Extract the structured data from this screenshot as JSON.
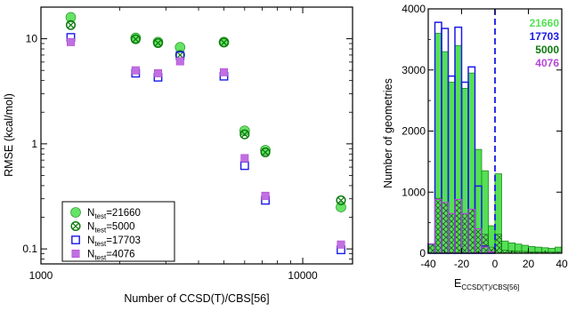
{
  "colors": {
    "green": "#55e055",
    "green_edge": "#1a8a1a",
    "blue": "#1a1ae6",
    "purple": "#b347d6",
    "purple_fill": "#c070e0",
    "dark_green": "#0c7a0c",
    "axis": "#000000"
  },
  "chart_data": [
    {
      "type": "scatter",
      "xscale": "log",
      "yscale": "log",
      "xlim": [
        1000,
        15500
      ],
      "ylim": [
        0.072,
        20
      ],
      "xlabel": "Number of CCSD(T)/CBS[56]",
      "ylabel": "RMSE (kcal/mol)",
      "xticks": [
        1000,
        10000
      ],
      "xtick_labels": [
        "1000",
        "10000"
      ],
      "yticks": [
        0.1,
        1,
        10
      ],
      "ytick_labels": [
        "0.1",
        "1",
        "10"
      ],
      "legend_position": "lower-left",
      "series": [
        {
          "name_main": "N",
          "name_sub": "test",
          "name_rest": "=21660",
          "marker": "filled-circle",
          "color_key": "green",
          "x": [
            1300,
            2300,
            2800,
            3400,
            5000,
            6000,
            7200,
            14000
          ],
          "y": [
            16,
            10.2,
            9.3,
            8.3,
            9.3,
            1.33,
            0.87,
            0.25
          ]
        },
        {
          "name_main": "N",
          "name_sub": "test",
          "name_rest": "=5000",
          "marker": "crossed-circle",
          "color_key": "dark_green",
          "x": [
            1300,
            2300,
            2800,
            3400,
            5000,
            6000,
            7200,
            14000
          ],
          "y": [
            13.5,
            9.9,
            9.1,
            7.0,
            9.2,
            1.23,
            0.83,
            0.29
          ]
        },
        {
          "name_main": "N",
          "name_sub": "test",
          "name_rest": "=17703",
          "marker": "open-square",
          "color_key": "blue",
          "x": [
            1300,
            2300,
            2800,
            3400,
            5000,
            6000,
            7200,
            14000
          ],
          "y": [
            10.3,
            4.7,
            4.3,
            6.9,
            4.4,
            0.62,
            0.29,
            0.098
          ]
        },
        {
          "name_main": "N",
          "name_sub": "test",
          "name_rest": "=4076",
          "marker": "filled-square",
          "color_key": "purple",
          "x": [
            1300,
            2300,
            2800,
            3400,
            5000,
            6000,
            7200,
            14000
          ],
          "y": [
            9.3,
            5.0,
            4.7,
            6.1,
            4.8,
            0.73,
            0.32,
            0.11
          ]
        }
      ]
    },
    {
      "type": "bar",
      "xlim": [
        -40,
        40
      ],
      "ylim": [
        0,
        4000
      ],
      "xlabel_main": "E",
      "xlabel_sub": "CCSD(T)/CBS[56]",
      "ylabel": "Number of geometries",
      "xticks": [
        -40,
        -20,
        0,
        20,
        40
      ],
      "xtick_labels": [
        "-40",
        "-20",
        "0",
        "20",
        "40"
      ],
      "yticks": [
        0,
        1000,
        2000,
        3000,
        4000
      ],
      "ytick_labels": [
        "0",
        "1000",
        "2000",
        "3000",
        "4000"
      ],
      "reference_line_x": 0,
      "bin_width": 4,
      "bin_left_edges": [
        -40,
        -36,
        -32,
        -28,
        -24,
        -20,
        -16,
        -12,
        -8,
        -4,
        0,
        4,
        8,
        12,
        16,
        20,
        24,
        28,
        32,
        36
      ],
      "series": [
        {
          "name": "21660",
          "color_key": "green",
          "values": [
            150,
            3600,
            3300,
            2800,
            3400,
            2700,
            2950,
            1700,
            1350,
            450,
            1300,
            200,
            170,
            150,
            130,
            110,
            100,
            90,
            80,
            100
          ]
        },
        {
          "name": "17703",
          "color_key": "blue",
          "values": [
            150,
            3780,
            3680,
            2900,
            3700,
            2800,
            3050,
            1100,
            120,
            20,
            0,
            0,
            0,
            0,
            0,
            0,
            0,
            0,
            0,
            0
          ]
        },
        {
          "name": "5000",
          "color_key": "dark_green",
          "values": [
            150,
            900,
            830,
            650,
            880,
            650,
            720,
            400,
            310,
            100,
            310,
            50,
            40,
            35,
            30,
            25,
            25,
            20,
            20,
            25
          ]
        },
        {
          "name": "4076",
          "color_key": "purple",
          "values": [
            150,
            880,
            830,
            650,
            880,
            650,
            720,
            400,
            100,
            20,
            0,
            0,
            0,
            0,
            0,
            0,
            0,
            0,
            0,
            0
          ]
        }
      ],
      "legend_labels": [
        "21660",
        "17703",
        "5000",
        "4076"
      ],
      "legend_color_keys": [
        "green",
        "blue",
        "dark_green",
        "purple"
      ]
    }
  ]
}
